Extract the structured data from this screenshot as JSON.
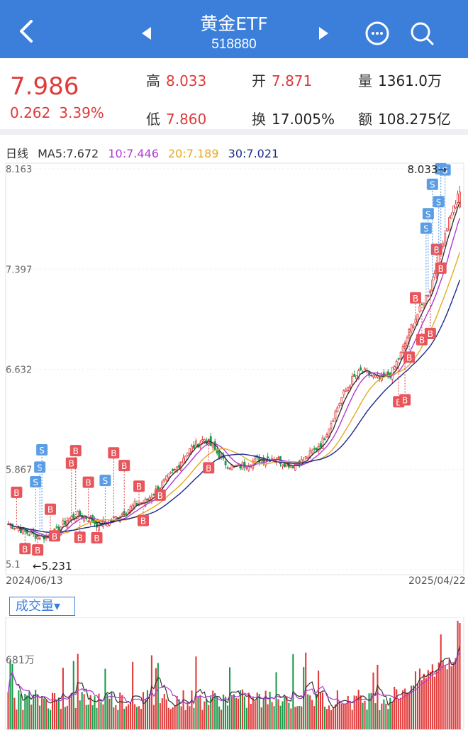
{
  "header": {
    "title": "黄金ETF",
    "code": "518880",
    "bg_color": "#3b7fdb"
  },
  "quote": {
    "price": "7.986",
    "change": "0.262",
    "change_pct": "3.39%",
    "high_label": "高",
    "high": "8.033",
    "low_label": "低",
    "low": "7.860",
    "open_label": "开",
    "open": "7.871",
    "turnover_label": "换",
    "turnover": "17.005%",
    "volume_label": "量",
    "volume": "1361.0万",
    "amount_label": "额",
    "amount": "108.275亿",
    "up_color": "#e03a3a"
  },
  "ma_legend": {
    "period": "日线",
    "ma5": "MA5:7.672",
    "ma10": "10:7.446",
    "ma20": "20:7.189",
    "ma30": "30:7.021",
    "colors": {
      "ma5": "#333333",
      "ma10": "#b03ad6",
      "ma20": "#e8a820",
      "ma30": "#1c2a8c"
    }
  },
  "kline": {
    "y_ticks": [
      "8.163",
      "7.397",
      "6.632",
      "5.867",
      "5.1"
    ],
    "high_marker": "8.033→",
    "low_marker": "←5.231",
    "start_date": "2024/06/13",
    "end_date": "2025/04/22",
    "buy_tag": "B",
    "sell_tag": "S"
  },
  "volume": {
    "selector_label": "成交量",
    "y_tick": "681万"
  },
  "chart_data": {
    "type": "candlestick",
    "title": "",
    "xlabel": "",
    "ylabel": "",
    "ylim": [
      5.1,
      8.163
    ],
    "x_range": [
      "2024/06/13",
      "2025/04/22"
    ],
    "trend_close": [
      5.45,
      5.42,
      5.38,
      5.36,
      5.35,
      5.4,
      5.48,
      5.52,
      5.5,
      5.45,
      5.46,
      5.5,
      5.55,
      5.6,
      5.62,
      5.7,
      5.78,
      5.86,
      5.98,
      6.05,
      6.1,
      6.02,
      5.92,
      5.88,
      5.9,
      5.93,
      5.95,
      5.96,
      5.92,
      5.9,
      5.93,
      6.0,
      6.08,
      6.25,
      6.42,
      6.55,
      6.62,
      6.58,
      6.55,
      6.6,
      6.75,
      6.95,
      7.1,
      7.25,
      7.55,
      7.8,
      7.986
    ],
    "volume_max": "1361.0万"
  }
}
